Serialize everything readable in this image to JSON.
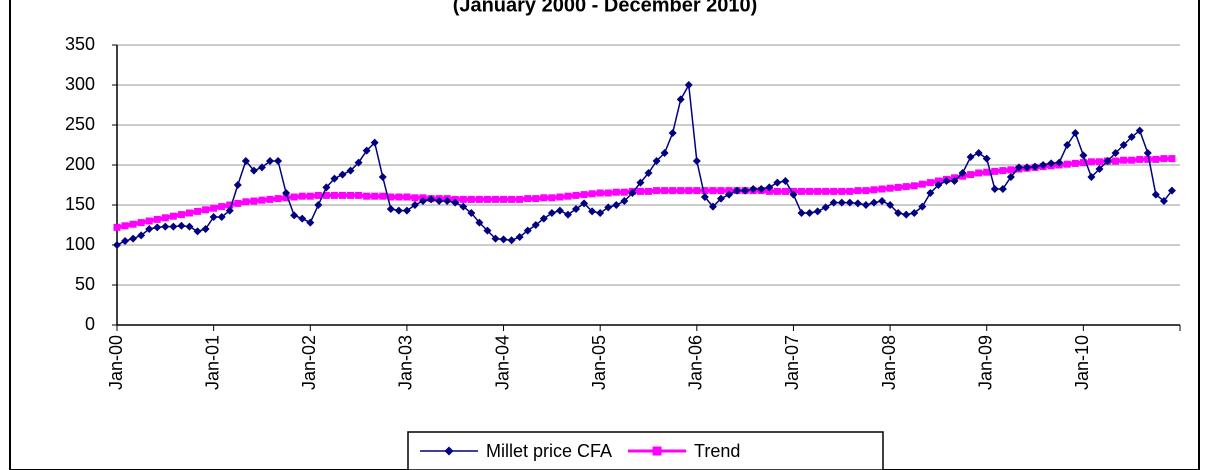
{
  "chart_data": {
    "type": "line",
    "title": "(January 2000 - December 2010)",
    "categories": [
      "Jan-00",
      null,
      null,
      null,
      null,
      null,
      null,
      null,
      null,
      null,
      null,
      null,
      "Jan-01",
      null,
      null,
      null,
      null,
      null,
      null,
      null,
      null,
      null,
      null,
      null,
      "Jan-02",
      null,
      null,
      null,
      null,
      null,
      null,
      null,
      null,
      null,
      null,
      null,
      "Jan-03",
      null,
      null,
      null,
      null,
      null,
      null,
      null,
      null,
      null,
      null,
      null,
      "Jan-04",
      null,
      null,
      null,
      null,
      null,
      null,
      null,
      null,
      null,
      null,
      null,
      "Jan-05",
      null,
      null,
      null,
      null,
      null,
      null,
      null,
      null,
      null,
      null,
      null,
      "Jan-06",
      null,
      null,
      null,
      null,
      null,
      null,
      null,
      null,
      null,
      null,
      null,
      "Jan-07",
      null,
      null,
      null,
      null,
      null,
      null,
      null,
      null,
      null,
      null,
      null,
      "Jan-08",
      null,
      null,
      null,
      null,
      null,
      null,
      null,
      null,
      null,
      null,
      null,
      "Jan-09",
      null,
      null,
      null,
      null,
      null,
      null,
      null,
      null,
      null,
      null,
      null,
      "Jan-10",
      null,
      null,
      null,
      null,
      null,
      null,
      null,
      null,
      null,
      null,
      null
    ],
    "series": [
      {
        "name": "Millet price CFA",
        "color": "#000080",
        "marker": "diamond",
        "values": [
          100,
          105,
          108,
          112,
          120,
          122,
          123,
          123,
          124,
          123,
          117,
          120,
          135,
          135,
          143,
          175,
          205,
          193,
          197,
          205,
          205,
          165,
          137,
          133,
          128,
          150,
          172,
          183,
          188,
          193,
          203,
          218,
          228,
          185,
          145,
          143,
          143,
          150,
          155,
          157,
          155,
          155,
          153,
          148,
          140,
          128,
          118,
          108,
          107,
          106,
          110,
          118,
          125,
          133,
          140,
          143,
          138,
          145,
          152,
          142,
          140,
          147,
          150,
          155,
          165,
          178,
          190,
          205,
          215,
          240,
          282,
          300,
          205,
          160,
          148,
          158,
          163,
          168,
          168,
          170,
          170,
          172,
          178,
          180,
          163,
          140,
          140,
          142,
          147,
          153,
          153,
          153,
          152,
          150,
          153,
          155,
          150,
          140,
          138,
          140,
          148,
          165,
          175,
          180,
          180,
          190,
          210,
          215,
          208,
          170,
          170,
          185,
          197,
          197,
          198,
          200,
          202,
          203,
          225,
          240,
          212,
          185,
          195,
          205,
          215,
          225,
          235,
          243,
          215,
          163,
          155,
          168
        ]
      },
      {
        "name": "Trend",
        "color": "#ff00ff",
        "marker": "square",
        "values": [
          122,
          124,
          126,
          128,
          130,
          132,
          134,
          136,
          138,
          140,
          142,
          144,
          146,
          148,
          150,
          152,
          154,
          155,
          156,
          157,
          158,
          159,
          160,
          161,
          161,
          162,
          162,
          162,
          162,
          162,
          162,
          161,
          161,
          161,
          160,
          160,
          160,
          159,
          159,
          158,
          158,
          158,
          157,
          157,
          157,
          157,
          157,
          157,
          157,
          157,
          157,
          158,
          158,
          159,
          159,
          160,
          161,
          162,
          163,
          164,
          165,
          165,
          166,
          166,
          167,
          167,
          167,
          168,
          168,
          168,
          168,
          168,
          168,
          168,
          168,
          168,
          168,
          168,
          168,
          168,
          168,
          167,
          167,
          167,
          167,
          167,
          167,
          167,
          167,
          167,
          167,
          167,
          168,
          168,
          169,
          170,
          171,
          172,
          173,
          174,
          176,
          178,
          180,
          182,
          184,
          186,
          188,
          190,
          191,
          192,
          193,
          194,
          195,
          196,
          197,
          198,
          199,
          200,
          201,
          202,
          203,
          204,
          204,
          205,
          205,
          206,
          206,
          207,
          207,
          207,
          208,
          208
        ]
      }
    ],
    "ylim": [
      0,
      350
    ],
    "yticks": [
      0,
      50,
      100,
      150,
      200,
      250,
      300,
      350
    ],
    "grid": true,
    "legend": "bottom"
  }
}
